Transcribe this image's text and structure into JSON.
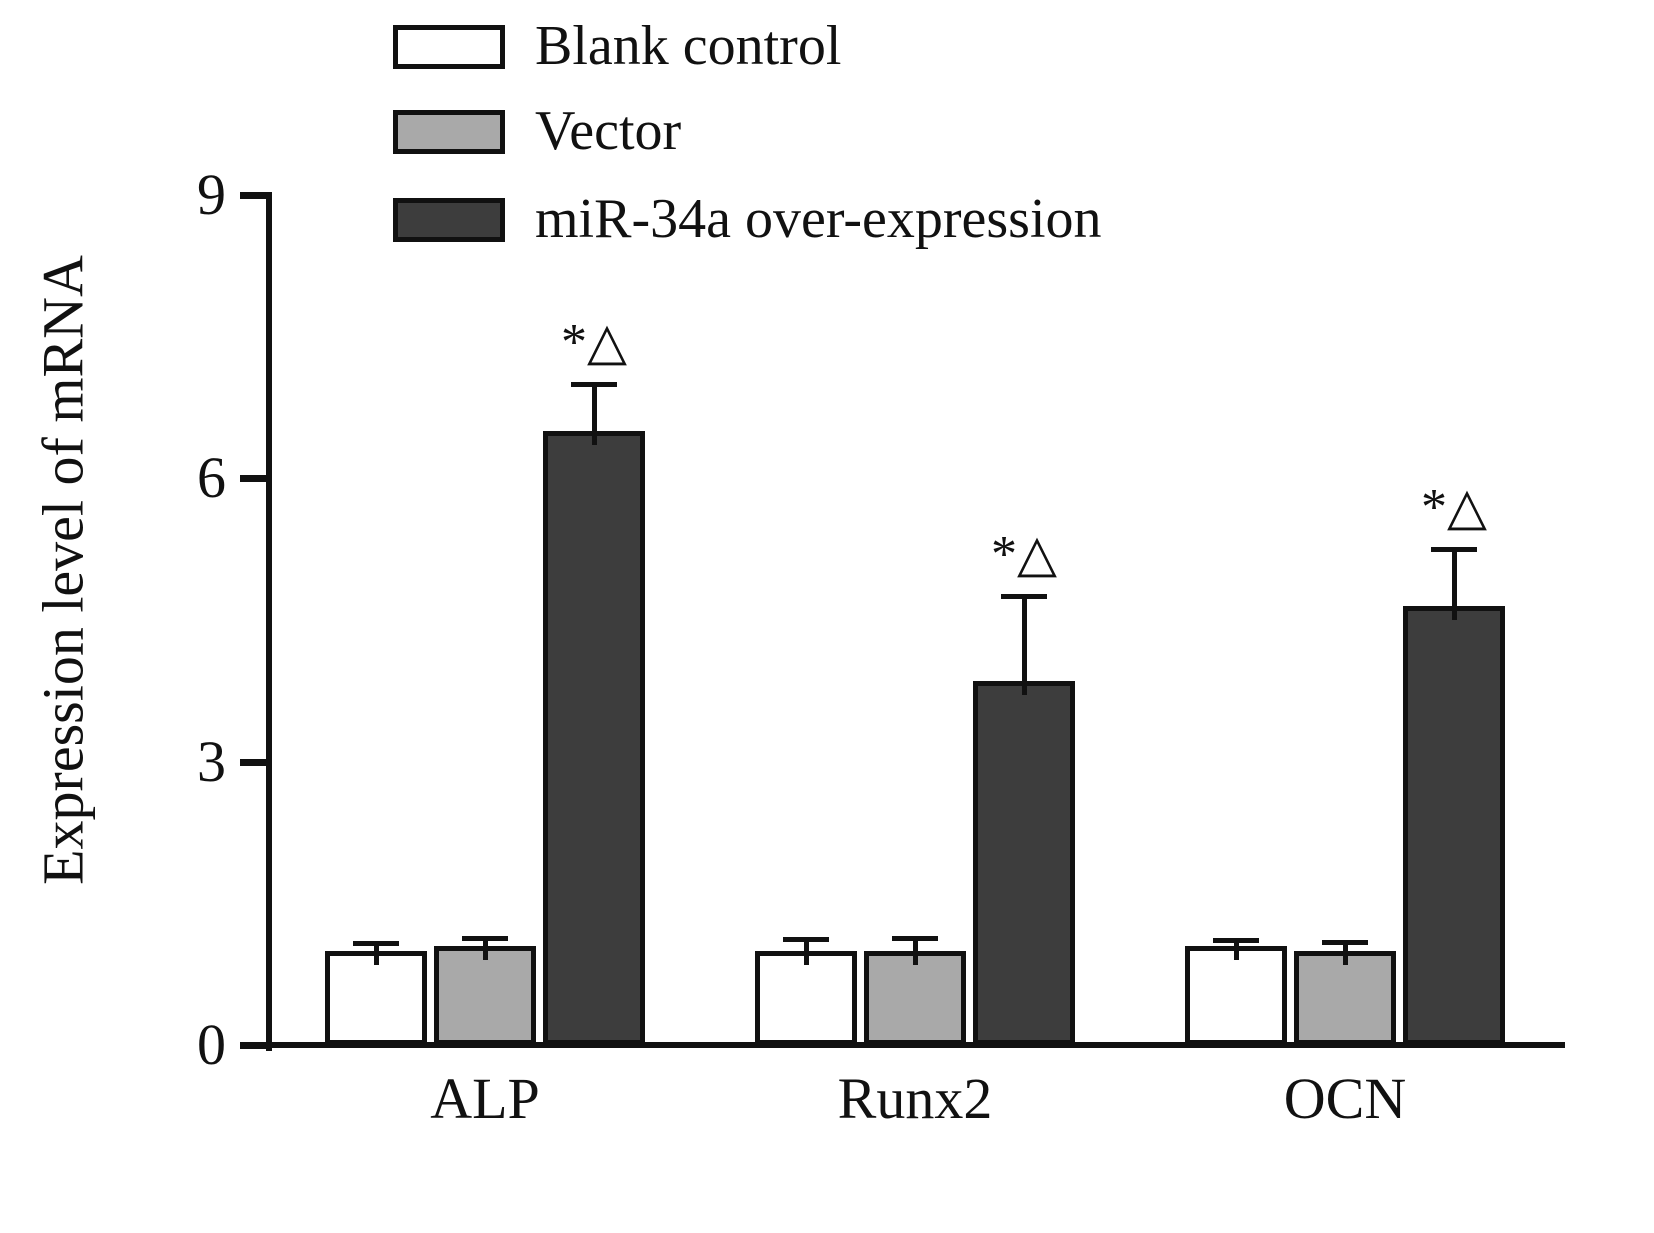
{
  "figure": {
    "background_color": "#ffffff",
    "axis_color": "#111111"
  },
  "chart_data": {
    "type": "bar",
    "title": "",
    "ylabel": "Expression level of mRNA",
    "xlabel": "",
    "ylim": [
      0,
      9
    ],
    "yticks": [
      0,
      3,
      6,
      9
    ],
    "grid": false,
    "legend_position": "top-left",
    "categories": [
      "ALP",
      "Runx2",
      "OCN"
    ],
    "series": [
      {
        "name": "Blank control",
        "color": "#ffffff",
        "values": [
          1.0,
          1.0,
          1.05
        ],
        "errors": [
          0.08,
          0.12,
          0.06
        ]
      },
      {
        "name": "Vector",
        "color": "#a9a9a9",
        "values": [
          1.05,
          1.0,
          1.0
        ],
        "errors": [
          0.08,
          0.13,
          0.09
        ]
      },
      {
        "name": "miR-34a over-expression",
        "color": "#3d3d3d",
        "values": [
          6.5,
          3.85,
          4.65
        ],
        "errors": [
          0.5,
          0.9,
          0.6
        ]
      }
    ],
    "annotations": [
      {
        "text": "*△",
        "category_index": 0,
        "series_index": 2
      },
      {
        "text": "*△",
        "category_index": 1,
        "series_index": 2
      },
      {
        "text": "*△",
        "category_index": 2,
        "series_index": 2
      }
    ]
  }
}
